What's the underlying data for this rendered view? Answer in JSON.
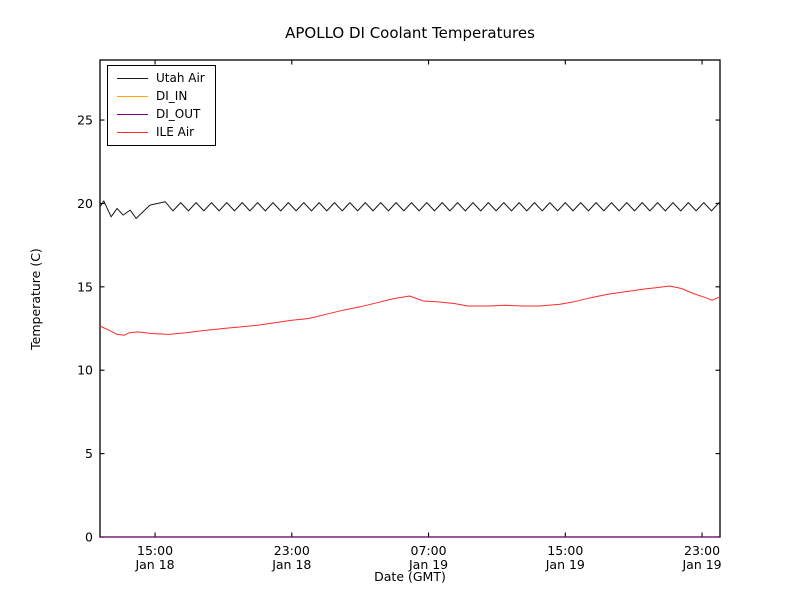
{
  "chart_data": {
    "type": "line",
    "title": "APOLLO DI Coolant Temperatures",
    "xlabel": "Date (GMT)",
    "ylabel": "Temperature (C)",
    "x_unit": "hours_since_Jan18_0000_GMT",
    "xlim": [
      11.78,
      48.05
    ],
    "ylim": [
      0,
      28.6
    ],
    "grid": false,
    "legend_position": "upper left",
    "axis_color": "#000000",
    "background_color": "#ffffff",
    "x_ticks": [
      {
        "t": 15,
        "time": "15:00",
        "date": "Jan 18"
      },
      {
        "t": 23,
        "time": "23:00",
        "date": "Jan 18"
      },
      {
        "t": 31,
        "time": "07:00",
        "date": "Jan 19"
      },
      {
        "t": 39,
        "time": "15:00",
        "date": "Jan 19"
      },
      {
        "t": 47,
        "time": "23:00",
        "date": "Jan 19"
      }
    ],
    "y_ticks": [
      0,
      5,
      10,
      15,
      20,
      25
    ],
    "series": [
      {
        "name": "Utah Air",
        "color": "#1a1a1a",
        "head_points": [
          [
            11.78,
            19.8
          ],
          [
            12.0,
            20.15
          ],
          [
            12.43,
            19.2
          ],
          [
            12.78,
            19.7
          ],
          [
            13.13,
            19.3
          ],
          [
            13.54,
            19.6
          ],
          [
            13.9,
            19.1
          ],
          [
            14.7,
            19.9
          ],
          [
            15.6,
            20.1
          ]
        ],
        "zigzag": {
          "t_start": 15.6,
          "t_end": 48.05,
          "half_period": 0.45,
          "low": 19.55,
          "high": 20.05,
          "end_value": 19.85
        }
      },
      {
        "name": "DI_IN",
        "color": "#ffa500",
        "flat_value": 0
      },
      {
        "name": "DI_OUT",
        "color": "#800080",
        "flat_value": 0
      },
      {
        "name": "ILE Air",
        "color": "#ff2a2a",
        "points": [
          [
            11.78,
            12.65
          ],
          [
            12.3,
            12.4
          ],
          [
            12.8,
            12.15
          ],
          [
            13.2,
            12.1
          ],
          [
            13.5,
            12.25
          ],
          [
            14.0,
            12.3
          ],
          [
            14.8,
            12.2
          ],
          [
            15.8,
            12.15
          ],
          [
            16.8,
            12.25
          ],
          [
            18.0,
            12.4
          ],
          [
            19.0,
            12.5
          ],
          [
            20.0,
            12.6
          ],
          [
            21.0,
            12.7
          ],
          [
            22.0,
            12.85
          ],
          [
            23.0,
            13.0
          ],
          [
            24.0,
            13.1
          ],
          [
            25.0,
            13.35
          ],
          [
            26.0,
            13.6
          ],
          [
            27.0,
            13.8
          ],
          [
            28.0,
            14.05
          ],
          [
            29.0,
            14.3
          ],
          [
            29.9,
            14.45
          ],
          [
            30.7,
            14.15
          ],
          [
            31.5,
            14.1
          ],
          [
            32.5,
            14.0
          ],
          [
            33.3,
            13.85
          ],
          [
            34.5,
            13.85
          ],
          [
            35.5,
            13.9
          ],
          [
            36.5,
            13.85
          ],
          [
            37.5,
            13.85
          ],
          [
            38.7,
            13.95
          ],
          [
            39.5,
            14.1
          ],
          [
            40.5,
            14.35
          ],
          [
            41.5,
            14.55
          ],
          [
            42.5,
            14.7
          ],
          [
            43.5,
            14.85
          ],
          [
            44.3,
            14.95
          ],
          [
            45.1,
            15.05
          ],
          [
            45.8,
            14.9
          ],
          [
            46.5,
            14.6
          ],
          [
            47.2,
            14.35
          ],
          [
            47.6,
            14.2
          ],
          [
            48.05,
            14.4
          ]
        ]
      }
    ]
  }
}
